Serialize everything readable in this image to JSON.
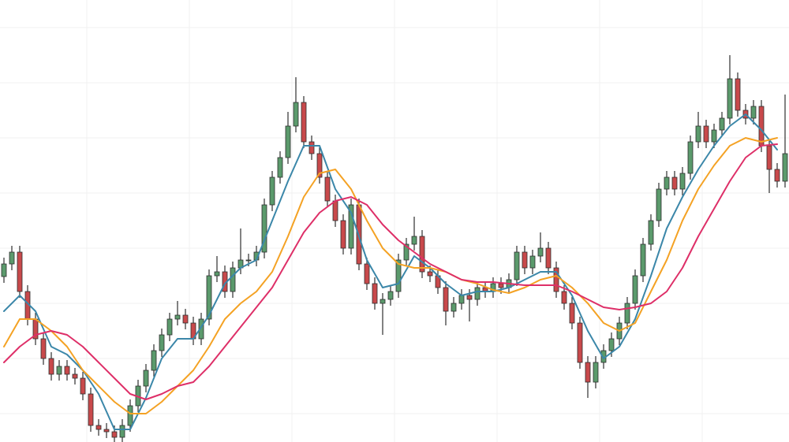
{
  "chart_data": {
    "type": "candlestick",
    "grid": true,
    "xlim": [
      -0.5,
      99.5
    ],
    "ylim": [
      0,
      561
    ],
    "xticks": [
      10.5,
      23.5,
      36.5,
      49.5,
      62.5,
      75.5,
      88.5
    ],
    "yticks": [
      36,
      106,
      176,
      246,
      316,
      386,
      456,
      526
    ],
    "up_color": "#5b9a6c",
    "down_color": "#c8494b",
    "outline_color": "#2e2e2e",
    "x": [
      0,
      1,
      2,
      3,
      4,
      5,
      6,
      7,
      8,
      9,
      10,
      11,
      12,
      13,
      14,
      15,
      16,
      17,
      18,
      19,
      20,
      21,
      22,
      23,
      24,
      25,
      26,
      27,
      28,
      29,
      30,
      31,
      32,
      33,
      34,
      35,
      36,
      37,
      38,
      39,
      40,
      41,
      42,
      43,
      44,
      45,
      46,
      47,
      48,
      49,
      50,
      51,
      52,
      53,
      54,
      55,
      56,
      57,
      58,
      59,
      60,
      61,
      62,
      63,
      64,
      65,
      66,
      67,
      68,
      69,
      70,
      71,
      72,
      73,
      74,
      75,
      76,
      77,
      78,
      79,
      80,
      81,
      82,
      83,
      84,
      85,
      86,
      87,
      88,
      89,
      90,
      91,
      92,
      93,
      94,
      95,
      96,
      97,
      98,
      99
    ],
    "open": [
      210,
      226,
      241,
      191,
      156,
      131,
      106,
      86,
      96,
      86,
      81,
      61,
      21,
      16,
      13,
      6,
      21,
      46,
      71,
      91,
      116,
      136,
      156,
      161,
      151,
      131,
      156,
      211,
      216,
      191,
      221,
      231,
      231,
      241,
      301,
      336,
      361,
      401,
      431,
      381,
      366,
      336,
      306,
      281,
      246,
      301,
      226,
      201,
      176,
      181,
      191,
      231,
      251,
      261,
      216,
      211,
      196,
      166,
      176,
      186,
      181,
      196,
      191,
      201,
      196,
      206,
      241,
      221,
      236,
      246,
      221,
      191,
      176,
      151,
      101,
      76,
      101,
      116,
      131,
      151,
      176,
      211,
      251,
      281,
      321,
      336,
      321,
      341,
      381,
      401,
      381,
      396,
      411,
      461,
      421,
      411,
      426,
      376,
      346,
      331
    ],
    "high": [
      234,
      249,
      249,
      199,
      164,
      139,
      114,
      104,
      104,
      94,
      89,
      69,
      29,
      24,
      21,
      29,
      54,
      79,
      99,
      124,
      144,
      164,
      179,
      169,
      159,
      164,
      219,
      236,
      224,
      229,
      271,
      239,
      249,
      309,
      344,
      369,
      419,
      463,
      439,
      389,
      374,
      344,
      314,
      289,
      309,
      309,
      234,
      209,
      189,
      199,
      239,
      259,
      286,
      269,
      224,
      219,
      204,
      184,
      194,
      194,
      204,
      204,
      209,
      209,
      214,
      249,
      249,
      244,
      266,
      254,
      229,
      199,
      184,
      159,
      109,
      109,
      124,
      139,
      159,
      184,
      219,
      259,
      289,
      329,
      344,
      344,
      349,
      389,
      419,
      409,
      404,
      419,
      491,
      469,
      429,
      434,
      434,
      384,
      354,
      441
    ],
    "low": [
      202,
      218,
      183,
      148,
      123,
      98,
      78,
      78,
      78,
      73,
      53,
      13,
      8,
      5,
      -2,
      -2,
      13,
      38,
      63,
      83,
      108,
      128,
      148,
      143,
      123,
      123,
      148,
      203,
      183,
      183,
      213,
      223,
      223,
      233,
      293,
      328,
      353,
      393,
      373,
      358,
      328,
      298,
      273,
      238,
      238,
      218,
      193,
      168,
      136,
      173,
      183,
      223,
      243,
      208,
      203,
      188,
      148,
      158,
      168,
      153,
      173,
      183,
      183,
      188,
      188,
      198,
      213,
      213,
      228,
      213,
      183,
      168,
      143,
      93,
      56,
      68,
      93,
      108,
      123,
      143,
      168,
      203,
      243,
      273,
      313,
      313,
      313,
      333,
      373,
      373,
      373,
      388,
      403,
      413,
      403,
      403,
      368,
      316,
      323,
      323
    ],
    "close": [
      226,
      241,
      191,
      156,
      131,
      106,
      86,
      96,
      86,
      81,
      61,
      21,
      16,
      13,
      6,
      21,
      46,
      71,
      91,
      116,
      136,
      156,
      161,
      151,
      131,
      156,
      211,
      216,
      191,
      221,
      231,
      231,
      241,
      301,
      336,
      361,
      401,
      431,
      381,
      366,
      336,
      306,
      281,
      246,
      301,
      226,
      201,
      176,
      181,
      191,
      231,
      251,
      261,
      216,
      211,
      196,
      166,
      176,
      186,
      181,
      196,
      191,
      201,
      196,
      206,
      241,
      221,
      236,
      246,
      221,
      191,
      176,
      151,
      101,
      76,
      101,
      116,
      131,
      151,
      176,
      211,
      251,
      281,
      321,
      336,
      321,
      341,
      381,
      401,
      381,
      396,
      411,
      461,
      421,
      411,
      426,
      376,
      346,
      331,
      366
    ],
    "series": [
      {
        "color": "#3b87a9",
        "x": [
          0,
          2,
          4,
          6,
          8,
          10,
          12,
          14,
          16,
          18,
          20,
          22,
          24,
          26,
          28,
          30,
          32,
          34,
          36,
          38,
          40,
          42,
          44,
          46,
          48,
          50,
          52,
          54,
          56,
          58,
          60,
          62,
          64,
          66,
          68,
          70,
          72,
          74,
          76,
          78,
          80,
          82,
          84,
          86,
          88,
          90,
          92,
          94,
          96,
          98
        ],
        "values": [
          166,
          186,
          166,
          121,
          111,
          91,
          61,
          16,
          16,
          56,
          106,
          131,
          131,
          161,
          201,
          221,
          231,
          281,
          331,
          376,
          376,
          321,
          291,
          231,
          196,
          201,
          236,
          221,
          201,
          186,
          191,
          191,
          196,
          206,
          216,
          216,
          186,
          141,
          106,
          121,
          156,
          211,
          271,
          311,
          346,
          376,
          401,
          416,
          396,
          371
        ]
      },
      {
        "color": "#f4a224",
        "x": [
          0,
          2,
          4,
          6,
          8,
          10,
          12,
          14,
          16,
          18,
          20,
          22,
          24,
          26,
          28,
          30,
          32,
          34,
          36,
          38,
          40,
          42,
          44,
          46,
          48,
          50,
          52,
          54,
          56,
          58,
          60,
          62,
          64,
          66,
          68,
          70,
          72,
          74,
          76,
          78,
          80,
          82,
          84,
          86,
          88,
          90,
          92,
          94,
          96,
          98
        ],
        "values": [
          121,
          156,
          156,
          141,
          121,
          91,
          71,
          51,
          36,
          36,
          51,
          71,
          91,
          121,
          156,
          176,
          191,
          216,
          261,
          311,
          341,
          346,
          321,
          281,
          246,
          226,
          221,
          221,
          216,
          206,
          201,
          193,
          189,
          196,
          206,
          211,
          196,
          176,
          151,
          141,
          151,
          191,
          231,
          281,
          321,
          351,
          376,
          386,
          381,
          386
        ]
      },
      {
        "color": "#de2f68",
        "x": [
          0,
          2,
          4,
          6,
          8,
          10,
          12,
          14,
          16,
          18,
          20,
          22,
          24,
          26,
          28,
          30,
          32,
          34,
          36,
          38,
          40,
          42,
          44,
          46,
          48,
          50,
          52,
          54,
          56,
          58,
          60,
          62,
          64,
          66,
          68,
          70,
          72,
          74,
          76,
          78,
          80,
          82,
          84,
          86,
          88,
          90,
          92,
          94,
          96,
          98
        ],
        "values": [
          101,
          121,
          136,
          141,
          136,
          121,
          101,
          81,
          61,
          54,
          61,
          71,
          76,
          96,
          121,
          146,
          171,
          196,
          231,
          266,
          291,
          306,
          311,
          301,
          276,
          256,
          241,
          226,
          216,
          206,
          203,
          203,
          201,
          199,
          199,
          199,
          191,
          181,
          171,
          168,
          171,
          176,
          191,
          221,
          261,
          296,
          331,
          361,
          376,
          378
        ]
      }
    ]
  }
}
